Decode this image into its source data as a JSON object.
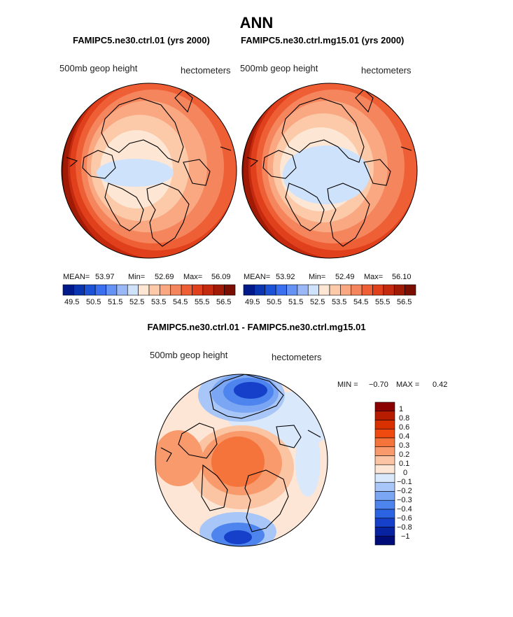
{
  "chart_data": [
    {
      "type": "heatmap",
      "projection": "north-polar-stereographic",
      "title": "FAMIPC5.ne30.ctrl.01 (yrs 2000)",
      "left_label": "500mb geop height",
      "right_label": "hectometers",
      "stats": {
        "mean_label": "MEAN=",
        "mean": "53.97",
        "min_label": "Min=",
        "min": "52.69",
        "max_label": "Max=",
        "max": "56.09"
      },
      "colorbar": {
        "colors": [
          "#001a8c",
          "#0a35b0",
          "#1c52d6",
          "#3a70f0",
          "#6593f5",
          "#9ab8f8",
          "#cfe2fb",
          "#fde7d4",
          "#fcc9a9",
          "#f9a882",
          "#f5855d",
          "#ef5f35",
          "#e0401c",
          "#c52a0e",
          "#a01a05",
          "#7a0e00"
        ],
        "tick_labels": [
          "49.5",
          "50.5",
          "51.5",
          "52.5",
          "53.5",
          "54.5",
          "55.5",
          "56.5"
        ]
      }
    },
    {
      "type": "heatmap",
      "projection": "north-polar-stereographic",
      "title": "FAMIPC5.ne30.ctrl.mg15.01 (yrs 2000)",
      "left_label": "500mb geop height",
      "right_label": "hectometers",
      "stats": {
        "mean_label": "MEAN=",
        "mean": "53.92",
        "min_label": "Min=",
        "min": "52.49",
        "max_label": "Max=",
        "max": "56.10"
      },
      "colorbar": {
        "colors": [
          "#001a8c",
          "#0a35b0",
          "#1c52d6",
          "#3a70f0",
          "#6593f5",
          "#9ab8f8",
          "#cfe2fb",
          "#fde7d4",
          "#fcc9a9",
          "#f9a882",
          "#f5855d",
          "#ef5f35",
          "#e0401c",
          "#c52a0e",
          "#a01a05",
          "#7a0e00"
        ],
        "tick_labels": [
          "49.5",
          "50.5",
          "51.5",
          "52.5",
          "53.5",
          "54.5",
          "55.5",
          "56.5"
        ]
      }
    },
    {
      "type": "heatmap",
      "projection": "north-polar-stereographic",
      "title": "FAMIPC5.ne30.ctrl.01 - FAMIPC5.ne30.ctrl.mg15.01",
      "left_label": "500mb geop height",
      "right_label": "hectometers",
      "stats": {
        "min_label": "MIN =",
        "min": "−0.70",
        "max_label": "MAX =",
        "max": "0.42"
      },
      "colorbar": {
        "colors": [
          "#8b0000",
          "#b81c00",
          "#d93000",
          "#f04a10",
          "#f5743c",
          "#f89a6c",
          "#fbc4a2",
          "#fde6d6",
          "#d9e8fb",
          "#a8c6f7",
          "#7aa6f3",
          "#4d84ee",
          "#2b63e2",
          "#1640c9",
          "#0823a2",
          "#000d78"
        ],
        "labels": [
          "1",
          "0.8",
          "0.6",
          "0.4",
          "0.3",
          "0.2",
          "0.1",
          "0",
          "−0.1",
          "−0.2",
          "−0.3",
          "−0.4",
          "−0.6",
          "−0.8",
          "−1"
        ]
      }
    }
  ],
  "figure": {
    "title": "ANN"
  }
}
